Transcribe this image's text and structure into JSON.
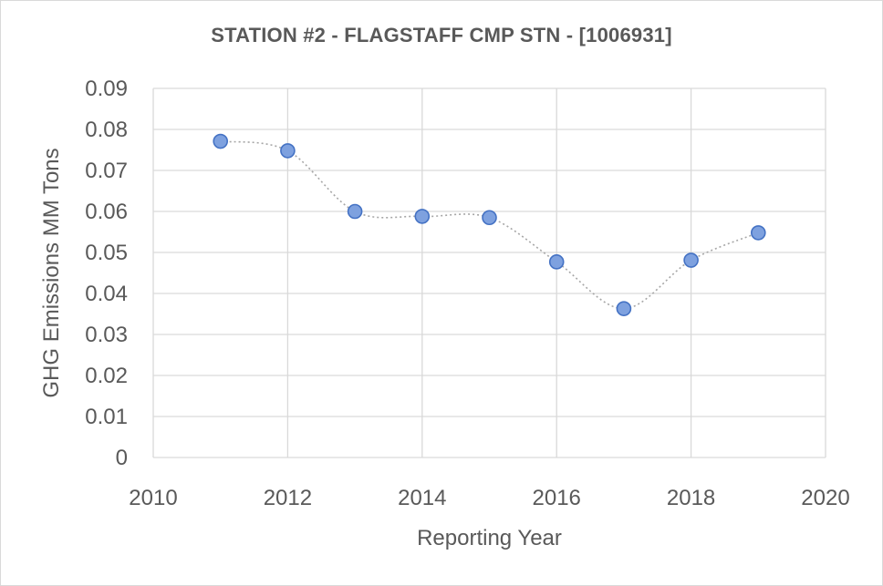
{
  "chart_data": {
    "type": "scatter",
    "title": "STATION #2 - FLAGSTAFF CMP STN - [1006931]",
    "xlabel": "Reporting Year",
    "ylabel": "GHG Emissions MM Tons",
    "xlim": [
      2010,
      2020
    ],
    "ylim": [
      0,
      0.09
    ],
    "x_ticks": [
      "2010",
      "2012",
      "2014",
      "2016",
      "2018",
      "2020"
    ],
    "y_ticks": [
      "0",
      "0.01",
      "0.02",
      "0.03",
      "0.04",
      "0.05",
      "0.06",
      "0.07",
      "0.08",
      "0.09"
    ],
    "grid": true,
    "legend": "none",
    "series": [
      {
        "x": [
          2011,
          2012,
          2013,
          2014,
          2015,
          2016,
          2017,
          2018,
          2019
        ],
        "y": [
          0.0771,
          0.0748,
          0.06,
          0.0588,
          0.0585,
          0.0477,
          0.0363,
          0.0481,
          0.0548
        ],
        "marker_color": "#7ea1df",
        "marker_edge": "#4472c4",
        "line_style": "dotted smooth",
        "line_color": "#a6a6a6"
      }
    ],
    "colors": {
      "grid": "#d9d9d9",
      "text": "#595959"
    }
  }
}
